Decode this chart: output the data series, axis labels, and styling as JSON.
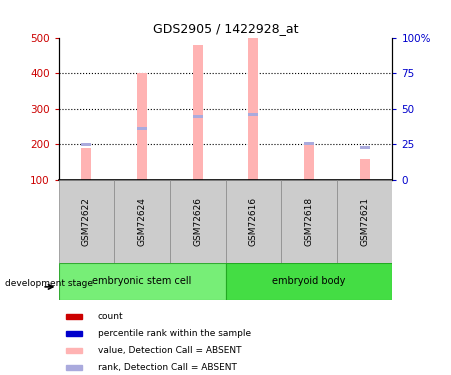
{
  "title": "GDS2905 / 1422928_at",
  "samples": [
    "GSM72622",
    "GSM72624",
    "GSM72626",
    "GSM72616",
    "GSM72618",
    "GSM72621"
  ],
  "bar_values": [
    190,
    400,
    480,
    500,
    200,
    160
  ],
  "rank_values": [
    200,
    245,
    278,
    283,
    202,
    192
  ],
  "ylim_left": [
    100,
    500
  ],
  "left_ticks": [
    100,
    200,
    300,
    400,
    500
  ],
  "right_tick_positions": [
    100,
    200,
    300,
    400,
    500
  ],
  "right_tick_labels": [
    "0",
    "25",
    "50",
    "75",
    "100%"
  ],
  "bar_color": "#FFB3B3",
  "rank_color": "#AAAADD",
  "left_tick_color": "#CC0000",
  "right_tick_color": "#0000CC",
  "sample_box_color": "#CCCCCC",
  "group1_color": "#77EE77",
  "group2_color": "#44DD44",
  "group1_label": "embryonic stem cell",
  "group2_label": "embryoid body",
  "development_stage_label": "development stage",
  "legend_colors": [
    "#CC0000",
    "#0000CC",
    "#FFB3B3",
    "#AAAADD"
  ],
  "legend_labels": [
    "count",
    "percentile rank within the sample",
    "value, Detection Call = ABSENT",
    "rank, Detection Call = ABSENT"
  ]
}
